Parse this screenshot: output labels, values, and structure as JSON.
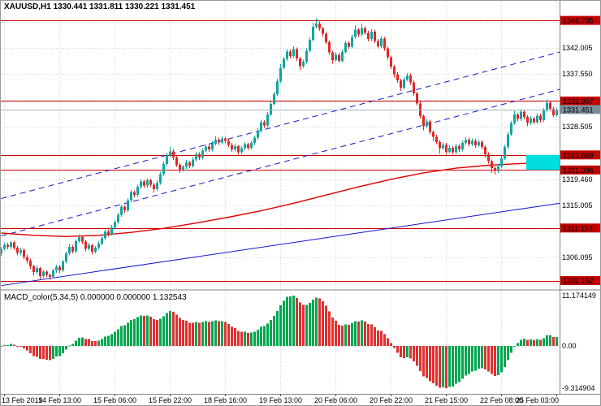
{
  "header": {
    "symbol_line": "XAUUSD,H1 1330.441 1331.811 1330.221 1331.451"
  },
  "macd": {
    "label": "MACD_color(5,34,5) 0.000000 0.000000 1.132543",
    "axis": [
      {
        "text": "11.174149",
        "value": 11.174149
      },
      {
        "text": "0.00",
        "value": 0
      },
      {
        "text": "-9.314904",
        "value": -9.314904
      }
    ]
  },
  "colors": {
    "up": "#12a5a0",
    "down": "#e02626",
    "level_red": "#d40000",
    "badge_red": "#c40000",
    "badge_current": "#7b8d9b",
    "current_line": "#9fb4c2",
    "trend_blue": "#1414cc",
    "ma_red": "#e00000",
    "zone_cyan": "#00dede",
    "grid": "#d6d6d6",
    "macd_up": "#00a651",
    "macd_down": "#e03030",
    "border": "#808080"
  },
  "chart_data": {
    "type": "candlestick",
    "symbol": "XAUUSD",
    "timeframe": "H1",
    "current_ohlc": {
      "open": 1330.441,
      "high": 1331.811,
      "low": 1330.221,
      "close": 1331.451
    },
    "current_price": 1331.451,
    "ylim_main": [
      1300.7,
      1350.2
    ],
    "macd_ylim": [
      -10.39,
      12.25
    ],
    "grid": "dotted",
    "x_ticks": [
      {
        "bar": 1,
        "label": "13 Feb 2019"
      },
      {
        "bar": 18,
        "label": "14 Feb 13:00"
      },
      {
        "bar": 35,
        "label": "15 Feb 06:00"
      },
      {
        "bar": 52,
        "label": "15 Feb 22:00"
      },
      {
        "bar": 69,
        "label": "18 Feb 16:00"
      },
      {
        "bar": 86,
        "label": "19 Feb 13:00"
      },
      {
        "bar": 103,
        "label": "20 Feb 06:00"
      },
      {
        "bar": 120,
        "label": "20 Feb 22:00"
      },
      {
        "bar": 137,
        "label": "21 Feb 15:00"
      },
      {
        "bar": 154,
        "label": "22 Feb 08:00"
      },
      {
        "bar": 171,
        "label": "25 Feb 03:00"
      }
    ],
    "price_grid_labels": [
      {
        "text": "1342.005",
        "value": 1342.005
      },
      {
        "text": "1337.550",
        "value": 1337.55
      },
      {
        "text": "1328.505",
        "value": 1328.505
      },
      {
        "text": "1319.460",
        "value": 1319.46
      },
      {
        "text": "1315.005",
        "value": 1315.005
      },
      {
        "text": "1306.095",
        "value": 1306.095
      }
    ],
    "price_grid_hidden": [
      1346.46,
      1333.03,
      1323.98,
      1310.55,
      1301.64
    ],
    "price_badges": [
      {
        "text": "1346.705",
        "value": 1346.705,
        "kind": "level"
      },
      {
        "text": "1332.907",
        "value": 1332.907,
        "kind": "level"
      },
      {
        "text": "1331.451",
        "value": 1331.451,
        "kind": "current"
      },
      {
        "text": "1323.669",
        "value": 1323.669,
        "kind": "level"
      },
      {
        "text": "1321.096",
        "value": 1321.096,
        "kind": "level"
      },
      {
        "text": "1311.157",
        "value": 1311.157,
        "kind": "level"
      },
      {
        "text": "1302.152",
        "value": 1302.152,
        "kind": "level"
      }
    ],
    "levels": [
      1346.705,
      1332.907,
      1323.669,
      1321.096,
      1311.157,
      1302.152
    ],
    "zone": {
      "price_top": 1323.669,
      "price_bottom": 1321.096,
      "bar_start": 162
    },
    "trendlines": [
      {
        "style": "dashed",
        "points": [
          [
            0,
            1316.2
          ],
          [
            172,
            1341.3
          ]
        ]
      },
      {
        "style": "dashed",
        "points": [
          [
            0,
            1309.8
          ],
          [
            172,
            1334.9
          ]
        ]
      },
      {
        "style": "solid",
        "points": [
          [
            0,
            1301.3
          ],
          [
            172,
            1315.4
          ]
        ]
      }
    ],
    "ma_red_anchors": [
      [
        0,
        1310.3
      ],
      [
        10,
        1309.9
      ],
      [
        20,
        1309.7
      ],
      [
        30,
        1309.9
      ],
      [
        40,
        1310.4
      ],
      [
        50,
        1311.1
      ],
      [
        60,
        1312.0
      ],
      [
        70,
        1313.0
      ],
      [
        80,
        1314.1
      ],
      [
        90,
        1315.4
      ],
      [
        100,
        1316.8
      ],
      [
        110,
        1318.2
      ],
      [
        120,
        1319.5
      ],
      [
        130,
        1320.6
      ],
      [
        140,
        1321.4
      ],
      [
        150,
        1321.9
      ],
      [
        160,
        1322.2
      ],
      [
        172,
        1322.5
      ]
    ],
    "macd_params": {
      "fast": 5,
      "slow": 34,
      "signal": 5,
      "hist_max_label": 11.174149,
      "hist_min_label": -9.314904,
      "hist_current": 1.132543
    },
    "candles": [
      [
        1306.8,
        1307.9,
        1306.4,
        1307.6
      ],
      [
        1307.6,
        1308.7,
        1307.3,
        1308.3
      ],
      [
        1308.3,
        1308.6,
        1307.5,
        1307.9
      ],
      [
        1307.9,
        1309.0,
        1307.6,
        1308.7
      ],
      [
        1308.7,
        1309.0,
        1307.4,
        1307.8
      ],
      [
        1307.8,
        1308.1,
        1306.5,
        1306.9
      ],
      [
        1306.9,
        1307.8,
        1306.5,
        1307.4
      ],
      [
        1307.4,
        1307.7,
        1305.8,
        1306.2
      ],
      [
        1306.2,
        1306.6,
        1305.1,
        1305.6
      ],
      [
        1305.6,
        1305.9,
        1304.2,
        1304.6
      ],
      [
        1304.6,
        1304.9,
        1303.0,
        1303.6
      ],
      [
        1303.6,
        1304.7,
        1303.2,
        1304.3
      ],
      [
        1304.3,
        1304.5,
        1302.4,
        1302.9
      ],
      [
        1302.9,
        1304.0,
        1302.6,
        1303.7
      ],
      [
        1303.7,
        1303.9,
        1302.7,
        1303.1
      ],
      [
        1303.1,
        1303.4,
        1302.3,
        1302.8
      ],
      [
        1302.8,
        1304.2,
        1302.5,
        1303.9
      ],
      [
        1303.9,
        1304.9,
        1303.5,
        1304.5
      ],
      [
        1304.5,
        1304.8,
        1303.4,
        1303.9
      ],
      [
        1303.9,
        1305.7,
        1303.6,
        1305.4
      ],
      [
        1305.4,
        1307.1,
        1305.1,
        1306.8
      ],
      [
        1306.8,
        1308.4,
        1306.5,
        1307.9
      ],
      [
        1307.9,
        1308.2,
        1306.8,
        1307.2
      ],
      [
        1307.2,
        1309.2,
        1306.9,
        1308.9
      ],
      [
        1308.9,
        1310.1,
        1308.6,
        1309.6
      ],
      [
        1309.6,
        1309.9,
        1308.4,
        1308.8
      ],
      [
        1308.8,
        1309.1,
        1307.2,
        1307.6
      ],
      [
        1307.6,
        1308.6,
        1307.3,
        1308.2
      ],
      [
        1308.2,
        1308.4,
        1306.6,
        1307.1
      ],
      [
        1307.1,
        1308.1,
        1306.8,
        1307.8
      ],
      [
        1307.8,
        1308.9,
        1307.5,
        1308.5
      ],
      [
        1308.5,
        1309.8,
        1308.2,
        1309.4
      ],
      [
        1309.4,
        1310.9,
        1309.1,
        1310.6
      ],
      [
        1310.6,
        1310.9,
        1309.7,
        1310.1
      ],
      [
        1310.1,
        1311.7,
        1309.9,
        1311.3
      ],
      [
        1311.3,
        1312.6,
        1311.0,
        1312.2
      ],
      [
        1312.2,
        1313.8,
        1311.9,
        1313.4
      ],
      [
        1313.4,
        1315.1,
        1313.1,
        1314.8
      ],
      [
        1314.8,
        1315.0,
        1313.8,
        1314.2
      ],
      [
        1314.2,
        1316.3,
        1313.9,
        1315.9
      ],
      [
        1315.9,
        1317.7,
        1315.6,
        1317.3
      ],
      [
        1317.3,
        1317.6,
        1316.4,
        1316.8
      ],
      [
        1316.8,
        1318.6,
        1316.5,
        1318.2
      ],
      [
        1318.2,
        1319.5,
        1317.9,
        1319.1
      ],
      [
        1319.1,
        1319.4,
        1318.0,
        1318.4
      ],
      [
        1318.4,
        1319.7,
        1318.1,
        1319.3
      ],
      [
        1319.3,
        1319.6,
        1318.2,
        1318.6
      ],
      [
        1318.6,
        1318.9,
        1317.2,
        1317.8
      ],
      [
        1317.8,
        1319.3,
        1317.5,
        1318.9
      ],
      [
        1318.9,
        1320.8,
        1318.6,
        1320.4
      ],
      [
        1320.4,
        1322.5,
        1320.1,
        1322.1
      ],
      [
        1322.1,
        1324.0,
        1321.8,
        1323.6
      ],
      [
        1323.6,
        1325.1,
        1323.3,
        1324.3
      ],
      [
        1324.3,
        1324.6,
        1322.8,
        1323.2
      ],
      [
        1323.2,
        1323.5,
        1321.6,
        1322.0
      ],
      [
        1322.0,
        1322.3,
        1320.6,
        1321.1
      ],
      [
        1321.1,
        1322.0,
        1320.8,
        1321.6
      ],
      [
        1321.6,
        1322.8,
        1321.3,
        1322.4
      ],
      [
        1322.4,
        1322.7,
        1321.4,
        1321.8
      ],
      [
        1321.8,
        1323.3,
        1321.5,
        1322.9
      ],
      [
        1322.9,
        1324.2,
        1322.6,
        1323.8
      ],
      [
        1323.8,
        1324.1,
        1322.8,
        1323.2
      ],
      [
        1323.2,
        1324.8,
        1322.9,
        1324.4
      ],
      [
        1324.4,
        1325.5,
        1324.1,
        1325.1
      ],
      [
        1325.1,
        1325.4,
        1324.2,
        1324.6
      ],
      [
        1324.6,
        1326.0,
        1324.3,
        1325.6
      ],
      [
        1325.6,
        1326.9,
        1325.3,
        1326.3
      ],
      [
        1326.3,
        1326.6,
        1325.4,
        1325.8
      ],
      [
        1325.8,
        1326.9,
        1325.5,
        1326.5
      ],
      [
        1326.5,
        1326.8,
        1325.7,
        1326.1
      ],
      [
        1326.1,
        1326.4,
        1325.0,
        1325.4
      ],
      [
        1325.4,
        1325.7,
        1324.2,
        1324.6
      ],
      [
        1324.6,
        1325.6,
        1324.3,
        1325.2
      ],
      [
        1325.2,
        1325.4,
        1323.7,
        1324.1
      ],
      [
        1324.1,
        1325.2,
        1323.8,
        1324.8
      ],
      [
        1324.8,
        1325.9,
        1324.5,
        1325.5
      ],
      [
        1325.5,
        1325.8,
        1324.5,
        1324.9
      ],
      [
        1324.9,
        1326.1,
        1324.6,
        1325.7
      ],
      [
        1325.7,
        1327.0,
        1325.4,
        1326.6
      ],
      [
        1326.6,
        1328.2,
        1326.3,
        1327.8
      ],
      [
        1327.8,
        1329.7,
        1327.5,
        1329.3
      ],
      [
        1329.3,
        1329.6,
        1328.3,
        1328.7
      ],
      [
        1328.7,
        1331.0,
        1328.4,
        1330.6
      ],
      [
        1330.6,
        1332.8,
        1330.3,
        1332.4
      ],
      [
        1332.4,
        1334.5,
        1332.1,
        1334.1
      ],
      [
        1334.1,
        1336.7,
        1333.8,
        1336.3
      ],
      [
        1336.3,
        1339.2,
        1336.0,
        1338.6
      ],
      [
        1338.6,
        1340.5,
        1338.3,
        1340.1
      ],
      [
        1340.1,
        1341.8,
        1339.8,
        1341.4
      ],
      [
        1341.4,
        1341.7,
        1340.2,
        1340.6
      ],
      [
        1340.6,
        1342.3,
        1340.3,
        1341.8
      ],
      [
        1341.8,
        1342.1,
        1339.8,
        1340.2
      ],
      [
        1340.2,
        1340.5,
        1338.2,
        1338.9
      ],
      [
        1338.9,
        1340.0,
        1338.6,
        1339.6
      ],
      [
        1339.6,
        1341.9,
        1339.3,
        1341.5
      ],
      [
        1341.5,
        1343.8,
        1341.2,
        1343.4
      ],
      [
        1343.4,
        1346.3,
        1343.1,
        1345.6
      ],
      [
        1345.6,
        1347.1,
        1345.3,
        1346.2
      ],
      [
        1346.2,
        1346.5,
        1344.9,
        1345.3
      ],
      [
        1345.3,
        1345.6,
        1343.9,
        1344.4
      ],
      [
        1344.4,
        1344.7,
        1342.6,
        1343.0
      ],
      [
        1343.0,
        1343.3,
        1340.8,
        1341.2
      ],
      [
        1341.2,
        1341.5,
        1339.3,
        1339.9
      ],
      [
        1339.9,
        1341.2,
        1339.6,
        1340.8
      ],
      [
        1340.8,
        1341.1,
        1339.4,
        1339.8
      ],
      [
        1339.8,
        1341.7,
        1339.5,
        1341.3
      ],
      [
        1341.3,
        1343.2,
        1341.0,
        1342.8
      ],
      [
        1342.8,
        1343.1,
        1341.8,
        1342.2
      ],
      [
        1342.2,
        1344.3,
        1341.9,
        1343.9
      ],
      [
        1343.9,
        1345.9,
        1343.6,
        1345.1
      ],
      [
        1345.1,
        1345.4,
        1343.9,
        1344.3
      ],
      [
        1344.3,
        1346.2,
        1344.0,
        1345.4
      ],
      [
        1345.4,
        1345.7,
        1344.2,
        1344.6
      ],
      [
        1344.6,
        1344.9,
        1343.1,
        1343.5
      ],
      [
        1343.5,
        1345.2,
        1343.2,
        1344.8
      ],
      [
        1344.8,
        1345.1,
        1342.8,
        1343.2
      ],
      [
        1343.2,
        1343.5,
        1341.9,
        1342.3
      ],
      [
        1342.3,
        1344.0,
        1342.0,
        1343.6
      ],
      [
        1343.6,
        1343.9,
        1341.5,
        1341.9
      ],
      [
        1341.9,
        1342.2,
        1340.0,
        1340.4
      ],
      [
        1340.4,
        1340.7,
        1338.4,
        1338.8
      ],
      [
        1338.8,
        1339.1,
        1336.9,
        1337.5
      ],
      [
        1337.5,
        1337.8,
        1336.0,
        1336.4
      ],
      [
        1336.4,
        1336.7,
        1334.6,
        1335.2
      ],
      [
        1335.2,
        1337.0,
        1334.9,
        1336.6
      ],
      [
        1336.6,
        1337.7,
        1336.3,
        1337.3
      ],
      [
        1337.3,
        1337.6,
        1335.7,
        1336.1
      ],
      [
        1336.1,
        1336.4,
        1333.8,
        1334.2
      ],
      [
        1334.2,
        1334.5,
        1332.1,
        1332.5
      ],
      [
        1332.5,
        1332.8,
        1329.9,
        1330.3
      ],
      [
        1330.3,
        1330.6,
        1327.9,
        1328.6
      ],
      [
        1328.6,
        1329.8,
        1328.3,
        1329.4
      ],
      [
        1329.4,
        1329.7,
        1327.2,
        1327.6
      ],
      [
        1327.6,
        1327.9,
        1326.1,
        1326.8
      ],
      [
        1326.8,
        1327.1,
        1325.5,
        1325.9
      ],
      [
        1325.9,
        1326.2,
        1323.9,
        1324.8
      ],
      [
        1324.8,
        1325.8,
        1324.5,
        1325.4
      ],
      [
        1325.4,
        1325.7,
        1323.7,
        1324.2
      ],
      [
        1324.2,
        1325.3,
        1323.9,
        1324.9
      ],
      [
        1324.9,
        1325.2,
        1323.8,
        1324.1
      ],
      [
        1324.1,
        1325.6,
        1323.8,
        1325.2
      ],
      [
        1325.2,
        1325.5,
        1324.2,
        1324.6
      ],
      [
        1324.6,
        1326.1,
        1324.3,
        1325.7
      ],
      [
        1325.7,
        1326.7,
        1325.4,
        1326.3
      ],
      [
        1326.3,
        1326.6,
        1325.1,
        1325.5
      ],
      [
        1325.5,
        1326.5,
        1325.2,
        1326.1
      ],
      [
        1326.1,
        1326.4,
        1324.9,
        1325.3
      ],
      [
        1325.3,
        1326.3,
        1325.0,
        1325.9
      ],
      [
        1325.9,
        1326.2,
        1324.6,
        1325.0
      ],
      [
        1325.0,
        1325.3,
        1323.2,
        1323.8
      ],
      [
        1323.8,
        1324.1,
        1322.2,
        1322.6
      ],
      [
        1322.6,
        1322.9,
        1320.6,
        1321.4
      ],
      [
        1321.4,
        1321.7,
        1320.3,
        1320.9
      ],
      [
        1320.9,
        1322.1,
        1320.6,
        1321.7
      ],
      [
        1321.7,
        1323.5,
        1321.4,
        1323.1
      ],
      [
        1323.1,
        1325.4,
        1322.8,
        1325.0
      ],
      [
        1325.0,
        1327.6,
        1324.7,
        1327.2
      ],
      [
        1327.2,
        1329.5,
        1326.9,
        1329.1
      ],
      [
        1329.1,
        1331.2,
        1328.8,
        1330.6
      ],
      [
        1330.6,
        1330.9,
        1329.4,
        1329.8
      ],
      [
        1329.8,
        1331.5,
        1329.5,
        1331.1
      ],
      [
        1331.1,
        1331.4,
        1329.8,
        1330.2
      ],
      [
        1330.2,
        1330.5,
        1328.6,
        1329.1
      ],
      [
        1329.1,
        1330.3,
        1328.8,
        1329.9
      ],
      [
        1329.9,
        1330.2,
        1328.9,
        1329.3
      ],
      [
        1329.3,
        1330.8,
        1329.0,
        1330.4
      ],
      [
        1330.4,
        1330.7,
        1329.2,
        1329.6
      ],
      [
        1329.6,
        1331.7,
        1329.3,
        1331.3
      ],
      [
        1331.3,
        1333.2,
        1331.0,
        1332.6
      ],
      [
        1332.6,
        1332.9,
        1331.2,
        1331.6
      ],
      [
        1331.6,
        1331.9,
        1330.2,
        1330.44
      ],
      [
        1330.44,
        1331.811,
        1330.221,
        1331.451
      ]
    ]
  }
}
